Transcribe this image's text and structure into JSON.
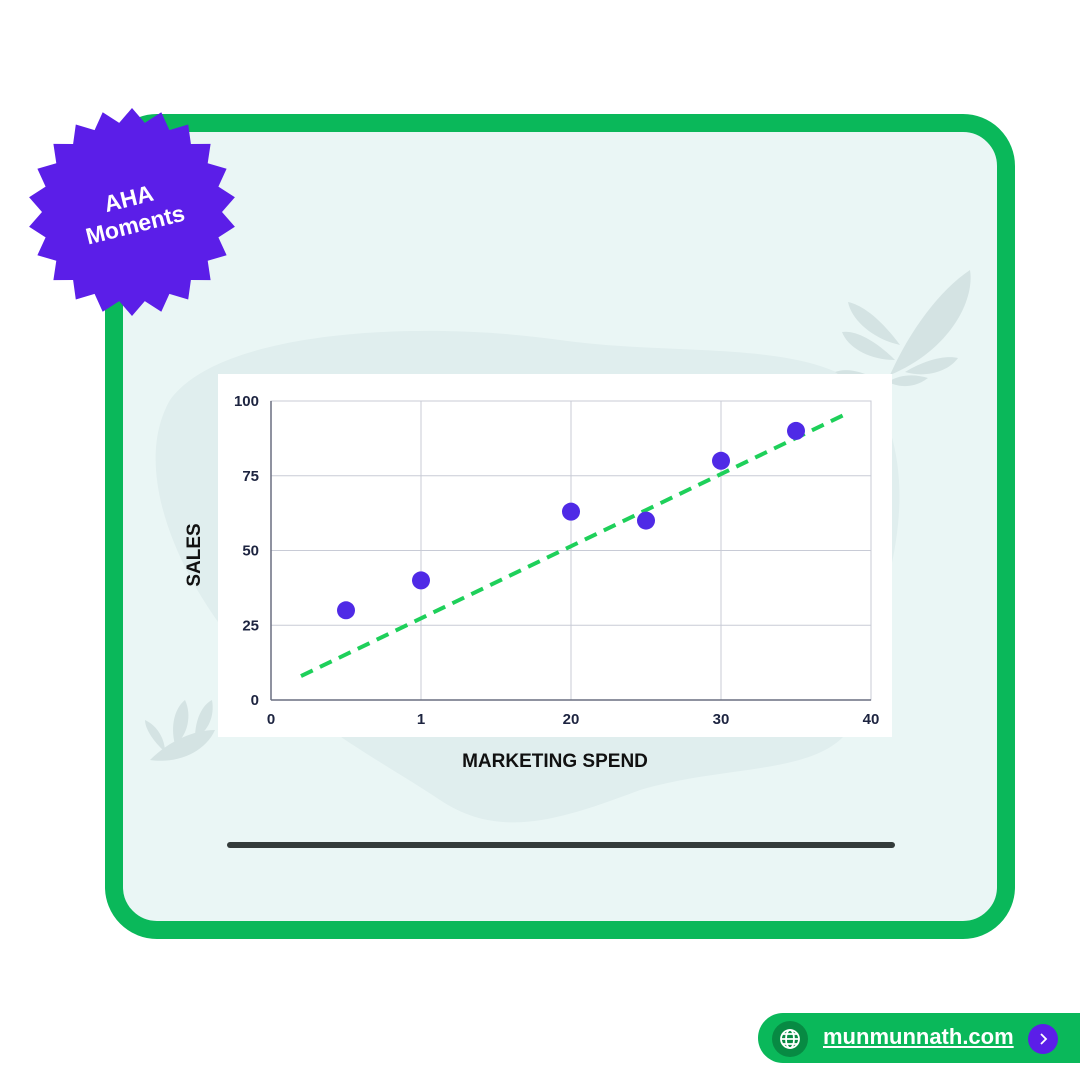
{
  "badge": {
    "line1": "AHA",
    "line2": "Moments",
    "icon": "starburst-badge-icon",
    "color": "#5b1ee8"
  },
  "colors": {
    "frame": "#0ab85a",
    "card_background": "#eaf6f5",
    "points": "#4f2ae6",
    "trend_line": "#1ed05a"
  },
  "chart_data": {
    "type": "scatter",
    "title": "",
    "xlabel": "MARKETING SPEND",
    "ylabel": "SALES",
    "x_tick_labels": [
      "0",
      "1",
      "20",
      "30",
      "40"
    ],
    "y_ticks": [
      0,
      25,
      50,
      75,
      100
    ],
    "ylim": [
      0,
      100
    ],
    "x_scale": "categorical-spaced ticks",
    "grid": true,
    "legend": "none",
    "points": [
      {
        "x": "0.5",
        "y": 30
      },
      {
        "x": "1",
        "y": 40
      },
      {
        "x": "20",
        "y": 63
      },
      {
        "x": "25",
        "y": 60
      },
      {
        "x": "30",
        "y": 80
      },
      {
        "x": "35",
        "y": 90
      }
    ],
    "trend_line": {
      "style": "dashed",
      "from_y": 8,
      "to_y": 96
    }
  },
  "footer": {
    "link_text": "munmunnath.com",
    "left_icon": "globe-icon",
    "right_icon": "chevron-right-icon"
  }
}
